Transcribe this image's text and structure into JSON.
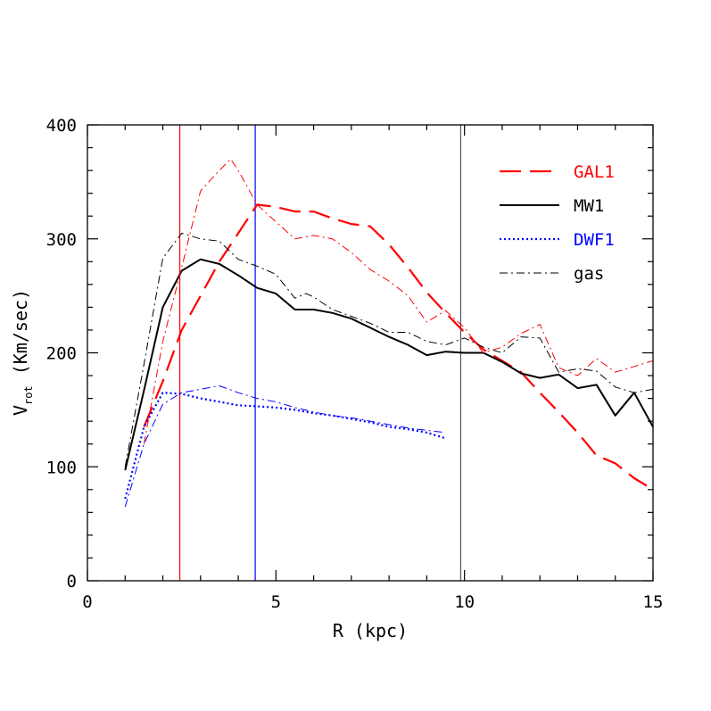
{
  "chart_data": {
    "type": "line",
    "xlabel": "R (kpc)",
    "ylabel_main": "V",
    "ylabel_sub": "rot",
    "ylabel_unit": "(Km/sec)",
    "xlim": [
      0,
      15
    ],
    "ylim": [
      0,
      400
    ],
    "xticks": [
      0,
      5,
      10,
      15
    ],
    "yticks": [
      0,
      100,
      200,
      300,
      400
    ],
    "grid": false,
    "legend_position": "top-right",
    "legend": [
      {
        "label": "GAL1",
        "color": "#ff0000",
        "dash": "long-dash"
      },
      {
        "label": "MW1",
        "color": "#000000",
        "dash": "solid"
      },
      {
        "label": "DWF1",
        "color": "#0000ff",
        "dash": "dotted"
      },
      {
        "label": "gas",
        "color": "#000000",
        "dash": "dash-dot"
      }
    ],
    "vertical_lines": [
      {
        "x": 2.45,
        "color": "#ff0000"
      },
      {
        "x": 4.45,
        "color": "#0000ff"
      },
      {
        "x": 9.9,
        "color": "#555555"
      }
    ],
    "series": [
      {
        "name": "GAL1",
        "color": "#ff0000",
        "style": "long-dash",
        "x": [
          1.5,
          2.0,
          2.5,
          3.0,
          3.5,
          4.0,
          4.5,
          5.0,
          5.5,
          6.0,
          6.5,
          7.0,
          7.5,
          8.0,
          8.5,
          9.0,
          9.5,
          10.0,
          10.5,
          11.0,
          11.5,
          12.0,
          12.5,
          13.0,
          13.5,
          14.0,
          14.5,
          15.0
        ],
        "values": [
          135,
          175,
          220,
          250,
          280,
          305,
          330,
          328,
          324,
          324,
          318,
          313,
          311,
          295,
          275,
          253,
          235,
          218,
          203,
          193,
          183,
          165,
          148,
          130,
          110,
          103,
          90,
          80
        ]
      },
      {
        "name": "MW1",
        "color": "#000000",
        "style": "solid",
        "x": [
          1.0,
          1.5,
          2.0,
          2.5,
          3.0,
          3.5,
          4.0,
          4.5,
          5.0,
          5.5,
          6.0,
          6.5,
          7.0,
          7.5,
          8.0,
          8.5,
          9.0,
          9.5,
          10.0,
          10.5,
          11.0,
          11.5,
          12.0,
          12.5,
          13.0,
          13.5,
          14.0,
          14.5,
          15.0
        ],
        "values": [
          97,
          167,
          240,
          272,
          282,
          278,
          268,
          257,
          252,
          238,
          238,
          235,
          230,
          222,
          214,
          207,
          198,
          201,
          200,
          200,
          192,
          182,
          178,
          181,
          169,
          172,
          145,
          165,
          135
        ]
      },
      {
        "name": "DWF1",
        "color": "#0000ff",
        "style": "dotted",
        "x": [
          1.0,
          1.5,
          2.0,
          2.5,
          3.0,
          3.5,
          4.0,
          4.5,
          5.0,
          5.5,
          6.0,
          6.5,
          7.0,
          7.5,
          8.0,
          8.5,
          9.0,
          9.5
        ],
        "values": [
          72,
          135,
          165,
          164,
          160,
          157,
          154,
          153,
          152,
          150,
          147,
          145,
          142,
          139,
          135,
          133,
          130,
          125
        ]
      },
      {
        "name": "gas",
        "color": "#000000",
        "style": "dash-dot",
        "x": [
          1.0,
          1.5,
          2.0,
          2.5,
          3.0,
          3.5,
          4.0,
          4.5,
          5.0,
          5.5,
          5.8,
          6.0,
          6.5,
          7.0,
          7.5,
          8.0,
          8.5,
          9.0,
          9.5,
          10.0,
          10.5,
          11.0,
          11.5,
          12.0,
          12.5,
          13.0,
          13.5,
          14.0,
          14.5,
          15.0
        ],
        "values": [
          100,
          190,
          283,
          305,
          300,
          298,
          282,
          276,
          269,
          248,
          252,
          249,
          238,
          232,
          226,
          218,
          218,
          210,
          207,
          213,
          205,
          200,
          214,
          213,
          183,
          186,
          184,
          170,
          165,
          168
        ]
      },
      {
        "name": "",
        "color": "#ff0000",
        "style": "thin-dash-dot",
        "x": [
          1.5,
          2.0,
          2.5,
          3.0,
          3.5,
          3.8,
          4.0,
          4.5,
          5.0,
          5.5,
          6.0,
          6.5,
          7.0,
          7.5,
          8.0,
          8.5,
          9.0,
          9.5,
          10.0,
          10.5,
          11.0,
          11.5,
          12.0,
          12.5,
          13.0,
          13.5,
          14.0,
          14.5,
          15.0
        ],
        "values": [
          120,
          210,
          275,
          342,
          360,
          370,
          360,
          330,
          315,
          300,
          303,
          300,
          288,
          273,
          263,
          250,
          227,
          237,
          222,
          200,
          205,
          217,
          225,
          187,
          180,
          195,
          183,
          188,
          193
        ]
      },
      {
        "name": "",
        "color": "#0000ff",
        "style": "thin-dash-dot",
        "x": [
          1.0,
          1.5,
          2.0,
          2.5,
          3.0,
          3.5,
          4.0,
          4.5,
          5.0,
          5.5,
          6.0,
          6.5,
          7.0,
          7.5,
          8.0,
          8.5,
          9.0,
          9.5
        ],
        "values": [
          65,
          120,
          155,
          165,
          168,
          171,
          165,
          160,
          157,
          152,
          148,
          145,
          143,
          140,
          137,
          134,
          132,
          130
        ]
      }
    ]
  }
}
